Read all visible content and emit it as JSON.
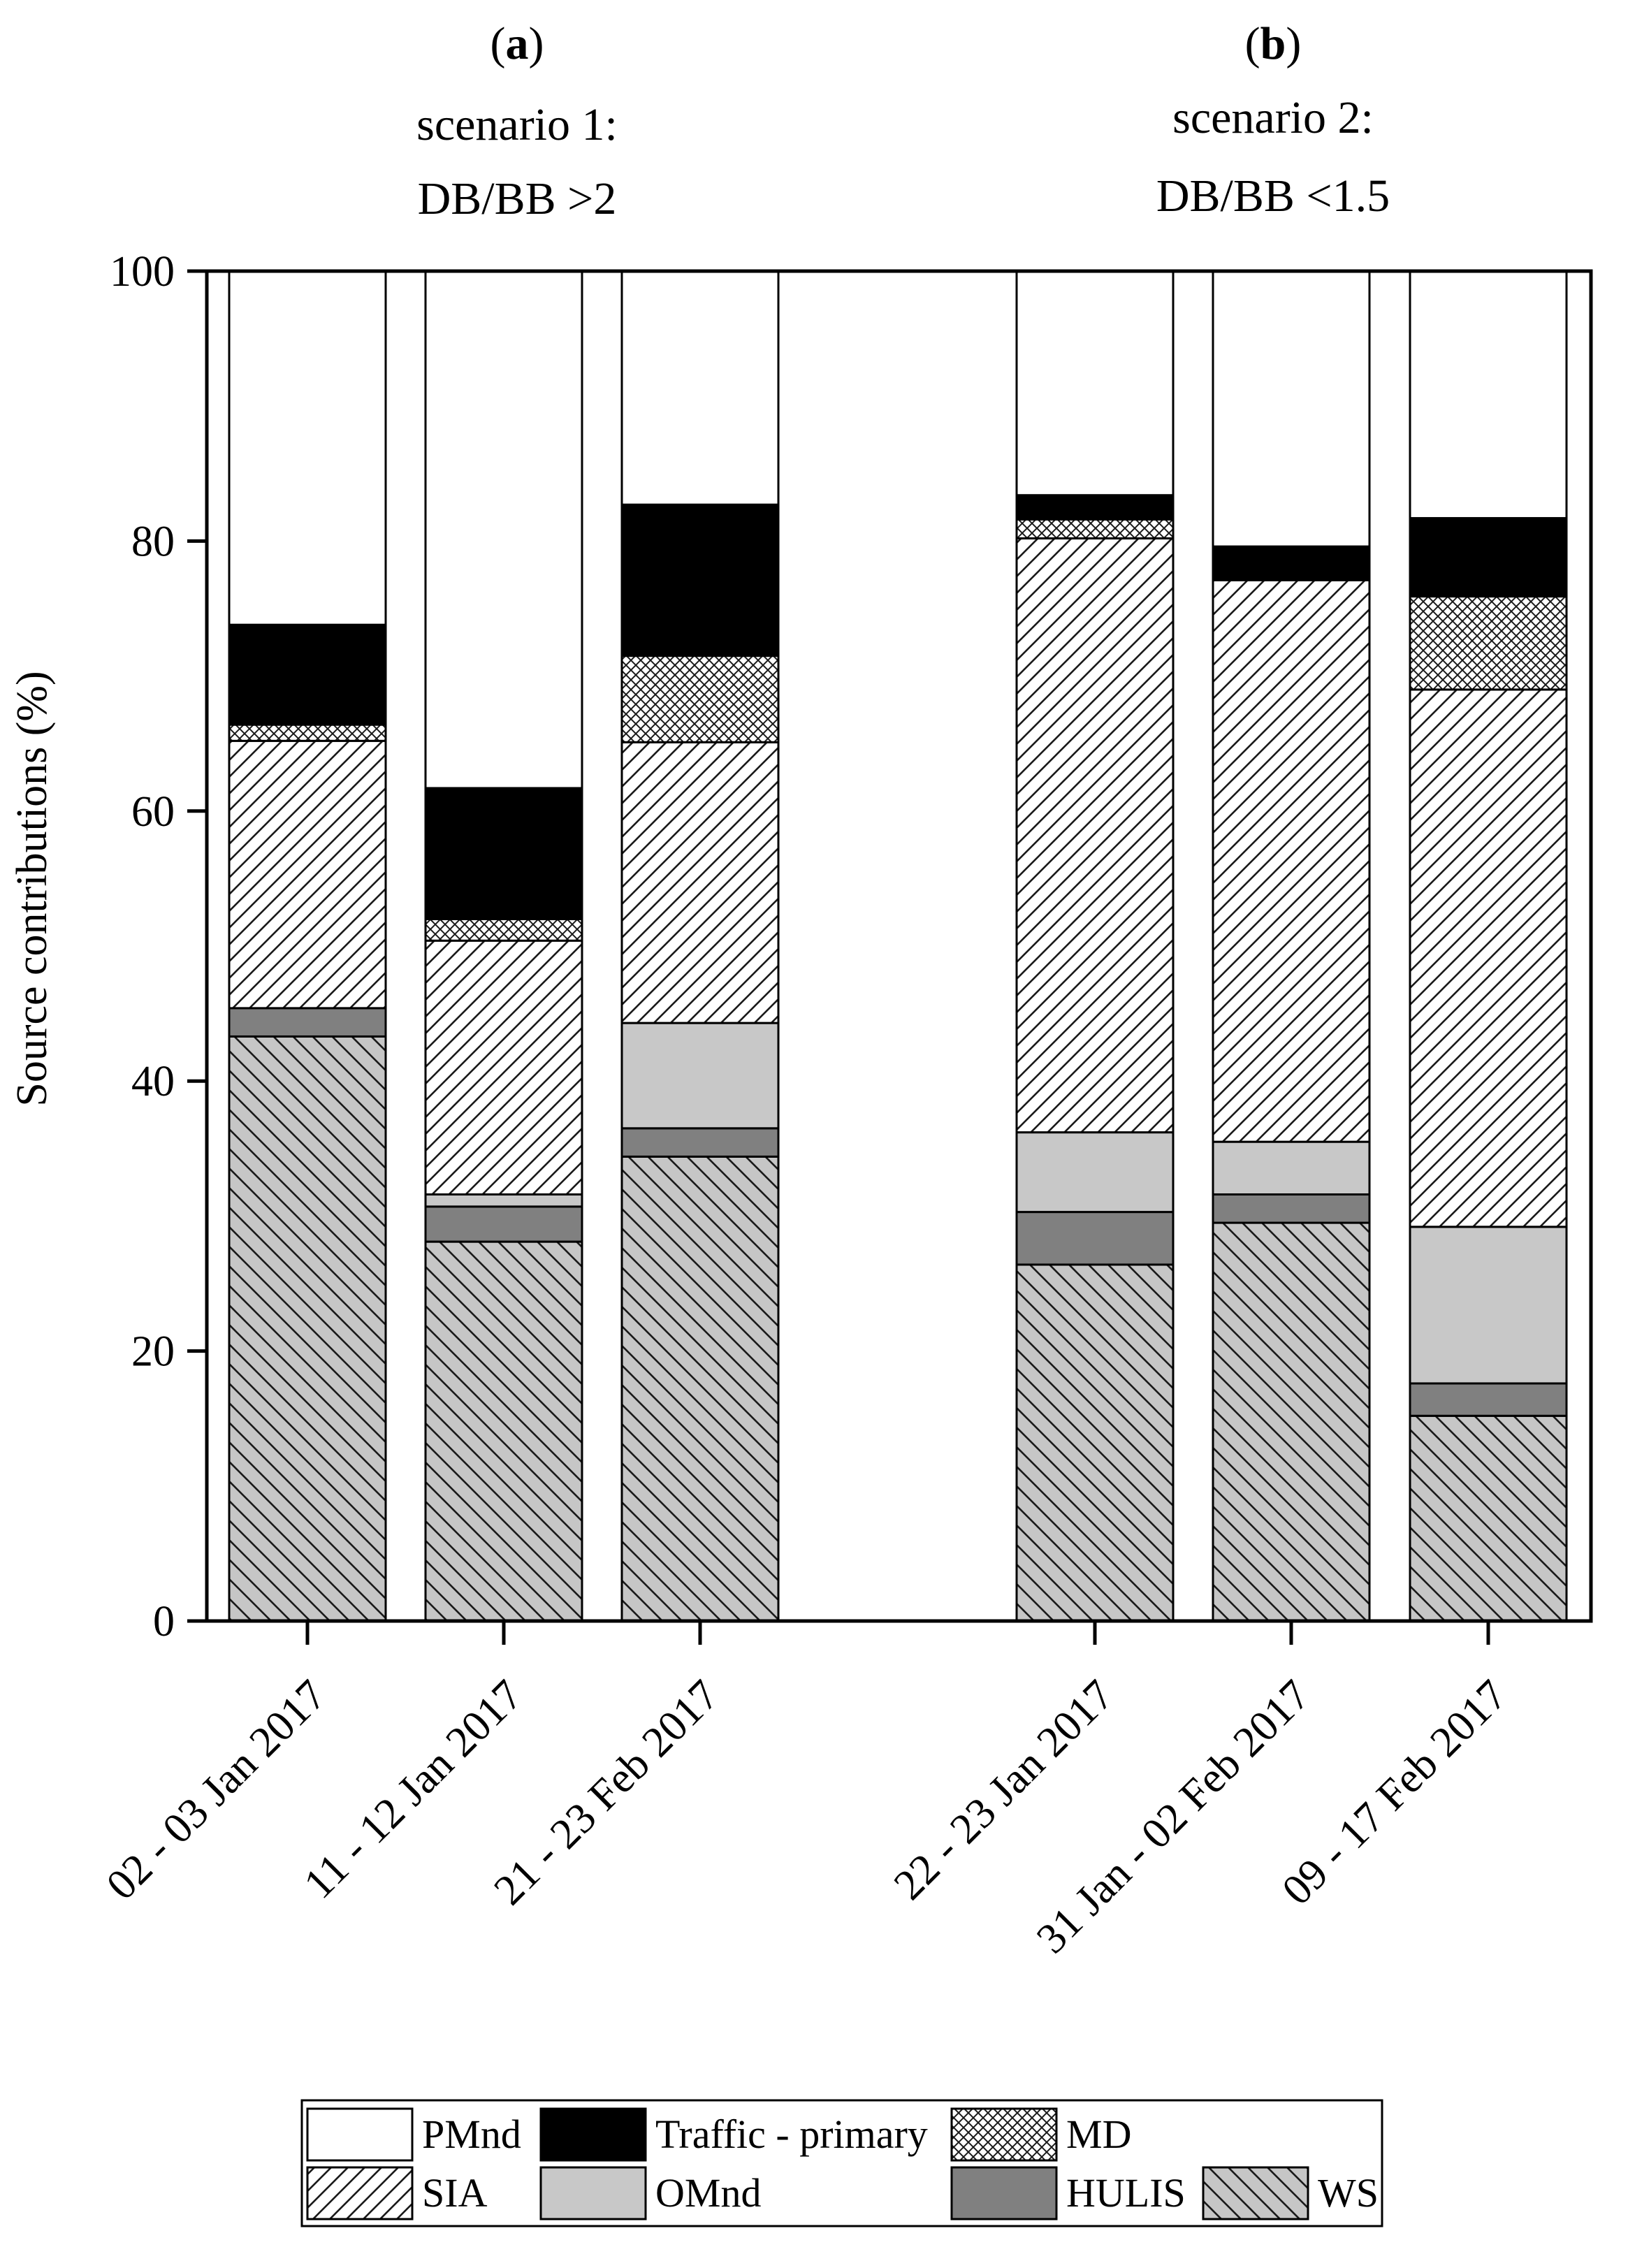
{
  "chart_data": {
    "type": "bar",
    "stacked": true,
    "panels": [
      {
        "letter": "a",
        "scenario": "scenario 1:",
        "condition": "DB/BB >2",
        "categories": [
          "02 - 03 Jan 2017",
          "11 - 12 Jan 2017",
          "21 - 23 Feb 2017"
        ]
      },
      {
        "letter": "b",
        "scenario": "scenario 2:",
        "condition": "DB/BB <1.5",
        "categories": [
          "22 - 23 Jan 2017",
          "31 Jan - 02 Feb 2017",
          "09 - 17 Feb 2017"
        ]
      }
    ],
    "categories": [
      "02 - 03 Jan 2017",
      "11 - 12 Jan 2017",
      "21 - 23 Feb 2017",
      "22 - 23 Jan 2017",
      "31 Jan - 02 Feb 2017",
      "09 - 17 Feb 2017"
    ],
    "ylabel": "Source contributions (%)",
    "ylim": [
      0,
      100
    ],
    "yticks": [
      0,
      20,
      40,
      60,
      80,
      100
    ],
    "grid": false,
    "legend_position": "bottom",
    "series": [
      {
        "name": "WS",
        "key": "ws",
        "pattern": "hatch-back",
        "values": [
          43.3,
          28.1,
          34.4,
          26.4,
          29.5,
          15.2
        ]
      },
      {
        "name": "HULIS",
        "key": "hulis",
        "pattern": "dark",
        "values": [
          2.1,
          2.6,
          2.1,
          3.9,
          2.1,
          2.4
        ]
      },
      {
        "name": "OMnd",
        "key": "omnd",
        "pattern": "light",
        "values": [
          0.0,
          0.9,
          7.8,
          5.9,
          3.9,
          11.6
        ]
      },
      {
        "name": "SIA",
        "key": "sia",
        "pattern": "hatch-fwd",
        "values": [
          19.8,
          18.8,
          20.8,
          44.0,
          41.6,
          39.8
        ]
      },
      {
        "name": "MD",
        "key": "md",
        "pattern": "cross",
        "values": [
          1.2,
          1.6,
          6.4,
          1.4,
          0.0,
          6.9
        ]
      },
      {
        "name": "Traffic - primary",
        "key": "traffic",
        "pattern": "black",
        "values": [
          7.4,
          9.7,
          11.2,
          1.8,
          2.5,
          5.8
        ]
      },
      {
        "name": "PMnd",
        "key": "pmnd",
        "pattern": "white",
        "values": [
          26.2,
          38.3,
          17.3,
          16.6,
          20.4,
          18.3
        ]
      }
    ],
    "legend_order": [
      "PMnd",
      "Traffic - primary",
      "MD",
      "SIA",
      "OMnd",
      "HULIS",
      "WS"
    ]
  }
}
